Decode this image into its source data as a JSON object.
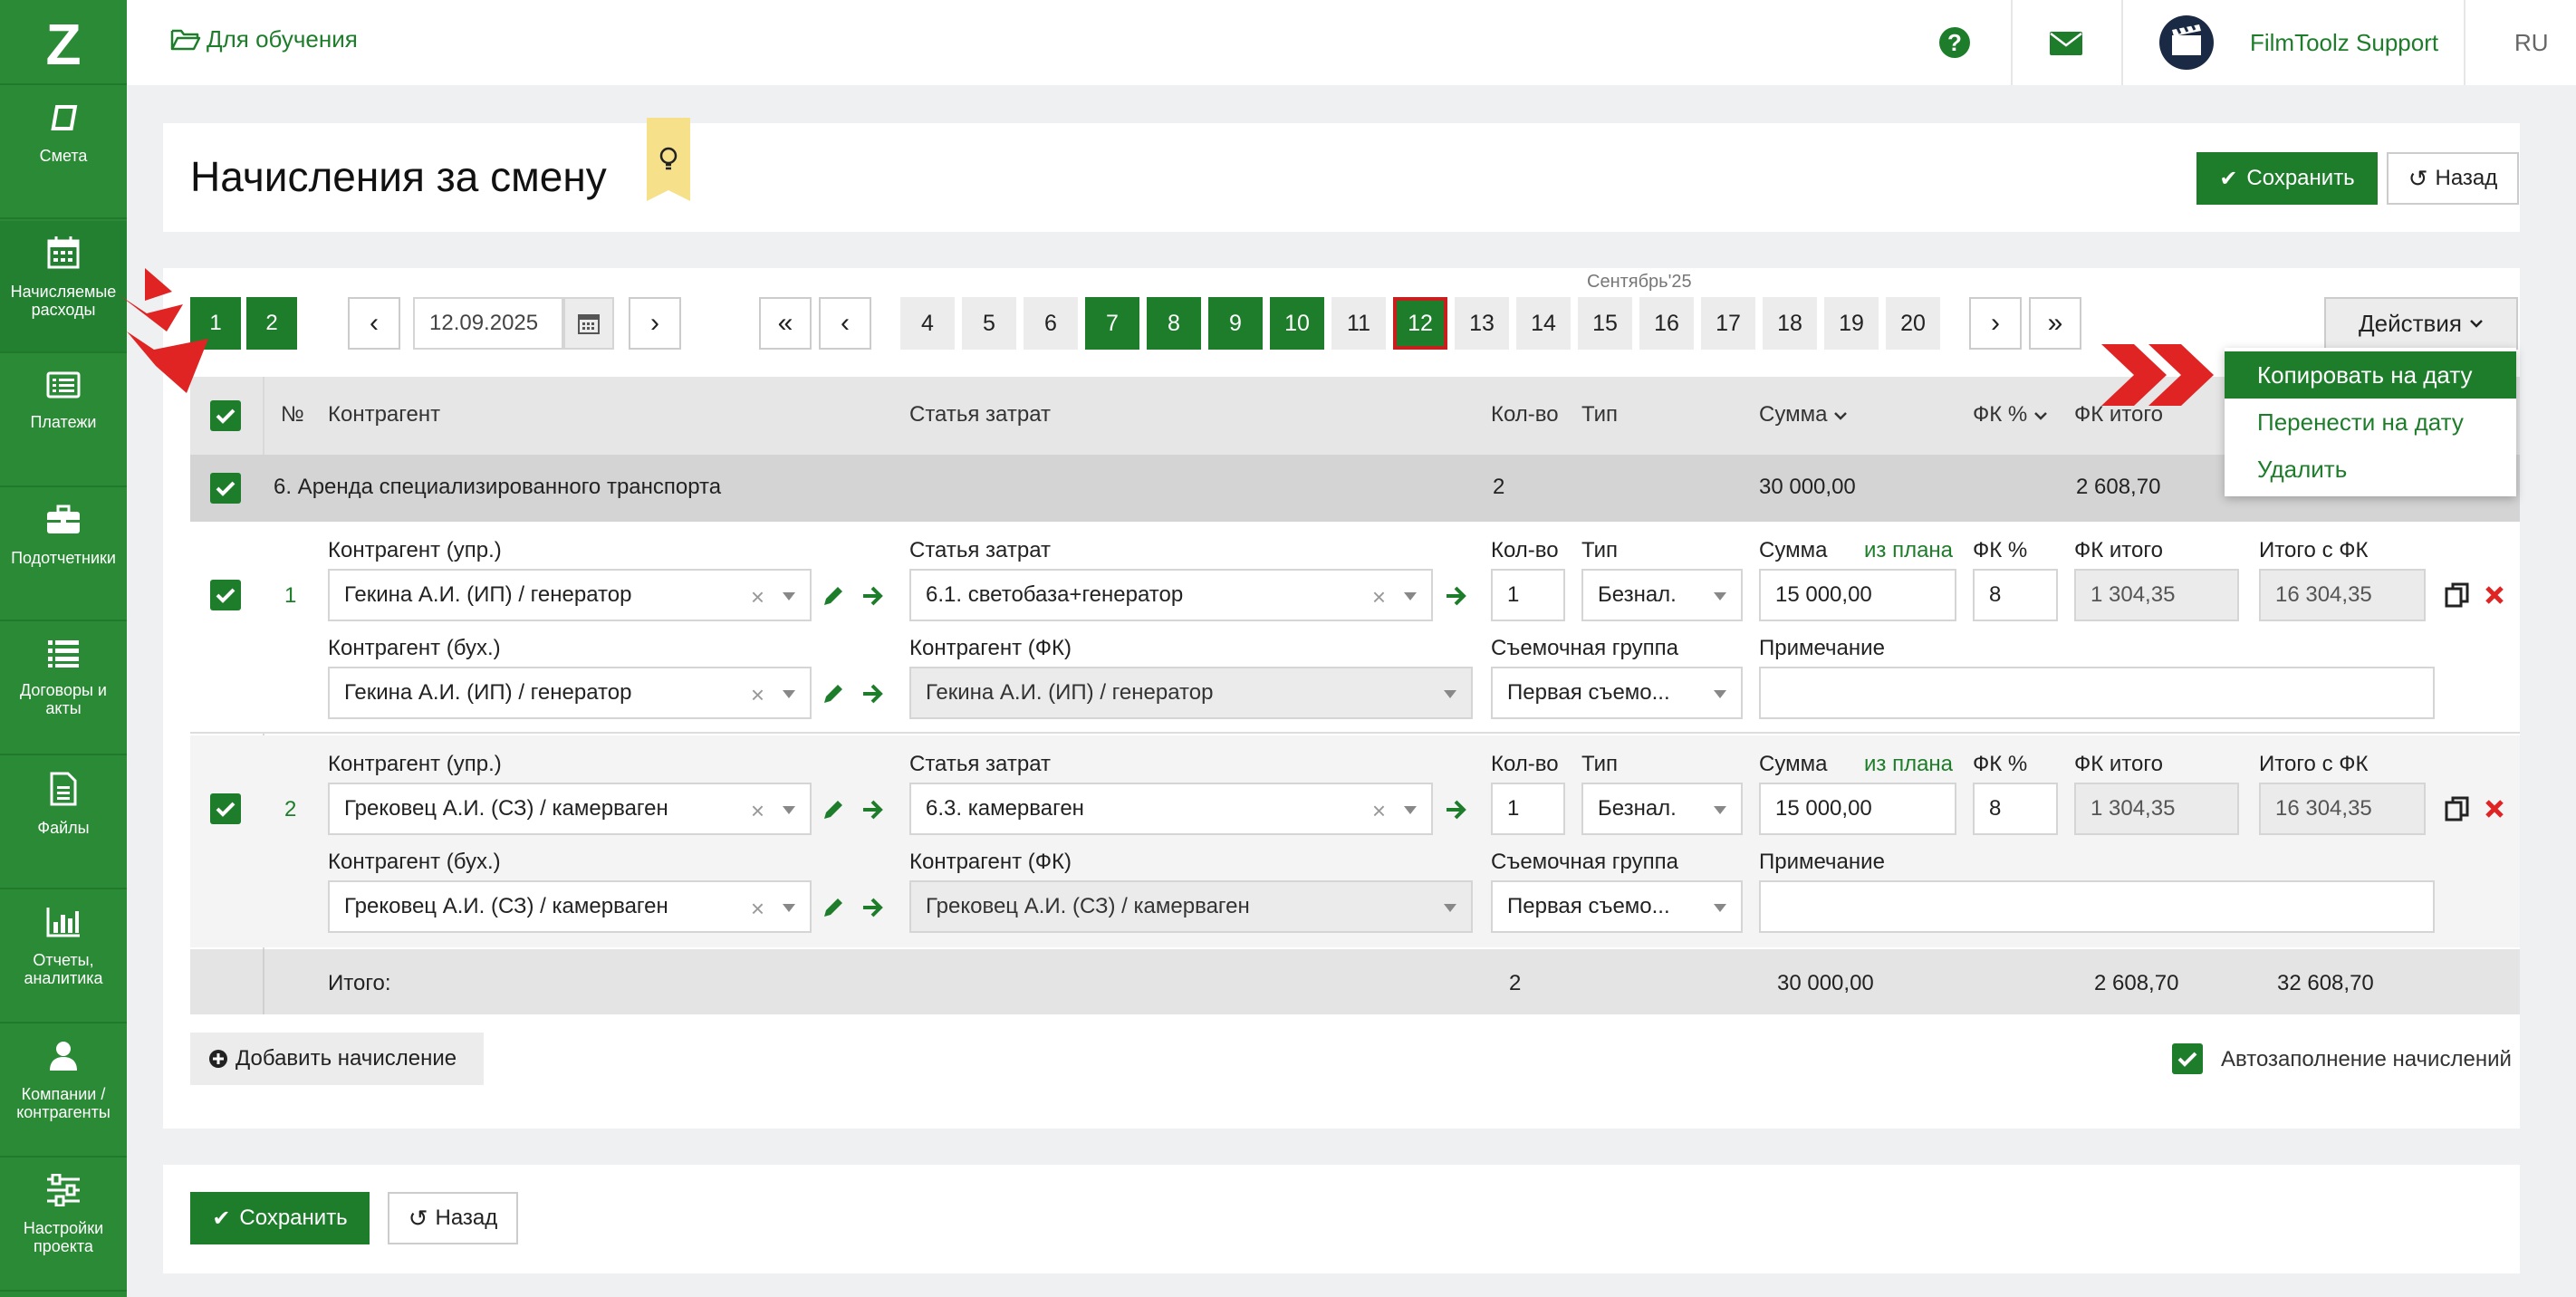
{
  "sidebar": {
    "logo": "Z",
    "items": [
      {
        "label": "Смета",
        "icon": "book-icon"
      },
      {
        "label": "Начисляемые расходы",
        "icon": "calendar-icon"
      },
      {
        "label": "Платежи",
        "icon": "payments-icon"
      },
      {
        "label": "Подотчетники",
        "icon": "briefcase-icon"
      },
      {
        "label": "Договоры и акты",
        "icon": "list-icon"
      },
      {
        "label": "Файлы",
        "icon": "file-icon"
      },
      {
        "label": "Отчеты, аналитика",
        "icon": "bar-chart-icon"
      },
      {
        "label": "Компании / контрагенты",
        "icon": "user-icon"
      },
      {
        "label": "Настройки проекта",
        "icon": "sliders-icon"
      }
    ]
  },
  "topbar": {
    "project": "Для обучения",
    "user": "FilmToolz Support",
    "lang": "RU"
  },
  "page": {
    "title": "Начисления за смену",
    "save": "Сохранить",
    "back": "Назад"
  },
  "toolbar": {
    "groups": [
      "1",
      "2"
    ],
    "date": "12.09.2025",
    "month": "Сентябрь'25",
    "prev": "‹",
    "next": "›",
    "first": "«",
    "last": "»",
    "days": [
      "4",
      "5",
      "6",
      "7",
      "8",
      "9",
      "10",
      "11",
      "12",
      "13",
      "14",
      "15",
      "16",
      "17",
      "18",
      "19",
      "20"
    ],
    "actions": "Действия"
  },
  "dropdown": {
    "items": [
      "Копировать на дату",
      "Перенести на дату",
      "Удалить"
    ]
  },
  "table": {
    "headers": {
      "num": "№",
      "contractor": "Контрагент",
      "article": "Статья затрат",
      "qty": "Кол-во",
      "type": "Тип",
      "sum": "Сумма",
      "fk": "ФК %",
      "fktotal": "ФК итого"
    },
    "group": {
      "name": "6. Аренда специализированного транспорта",
      "qty": "2",
      "sum": "30 000,00",
      "fk": "2 608,70"
    },
    "labels": {
      "contr_upr": "Контрагент (упр.)",
      "contr_buh": "Контрагент (бух.)",
      "article": "Статья затрат",
      "contr_fk": "Контрагент (ФК)",
      "qty": "Кол-во",
      "type": "Тип",
      "sum": "Сумма",
      "from_plan": "из плана",
      "fk": "ФК %",
      "fk_total": "ФК итого",
      "total_fk": "Итого с ФК",
      "group": "Съемочная группа",
      "note": "Примечание"
    },
    "rows": [
      {
        "num": "1",
        "contr_upr": "Гекина А.И. (ИП) / генератор",
        "contr_buh": "Гекина А.И. (ИП) / генератор",
        "article": "6.1. светобаза+генератор",
        "contr_fk": "Гекина А.И. (ИП) / генератор",
        "qty": "1",
        "type": "Безнал.",
        "sum": "15 000,00",
        "fk": "8",
        "fk_total": "1 304,35",
        "total_fk": "16 304,35",
        "group": "Первая съемо...",
        "note": ""
      },
      {
        "num": "2",
        "contr_upr": "Грековец А.И. (СЗ) / камерваген",
        "contr_buh": "Грековец А.И. (СЗ) / камерваген",
        "article": "6.3. камерваген",
        "contr_fk": "Грековец А.И. (СЗ) / камерваген",
        "qty": "1",
        "type": "Безнал.",
        "sum": "15 000,00",
        "fk": "8",
        "fk_total": "1 304,35",
        "total_fk": "16 304,35",
        "group": "Первая съемо...",
        "note": ""
      }
    ],
    "total": {
      "label": "Итого:",
      "qty": "2",
      "sum": "30 000,00",
      "fk": "2 608,70",
      "total_fk": "32 608,70"
    }
  },
  "footer": {
    "add": "Добавить начисление",
    "autofill": "Автозаполнение начислений",
    "save": "Сохранить",
    "back": "Назад"
  },
  "colors": {
    "green": "#1e7d2b",
    "sidebar": "#2a8a35",
    "red": "#e02424"
  }
}
